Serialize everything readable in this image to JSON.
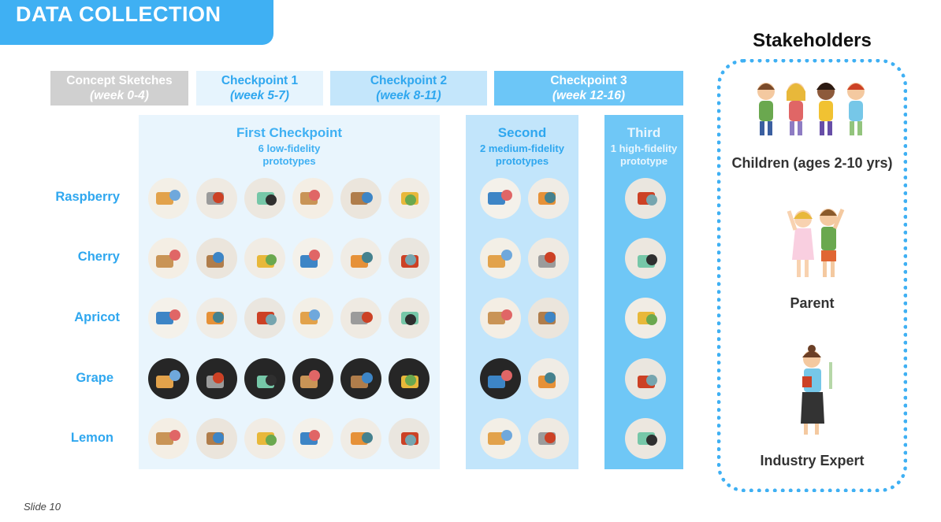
{
  "title": "DATA COLLECTION",
  "phases": [
    {
      "name": "Concept Sketches",
      "weeks": "(week 0-4)"
    },
    {
      "name": "Checkpoint 1",
      "weeks": "(week 5-7)"
    },
    {
      "name": "Checkpoint 2",
      "weeks": "(week 8-11)"
    },
    {
      "name": "Checkpoint 3",
      "weeks": "(week 12-16)"
    }
  ],
  "columns": [
    {
      "title": "First Checkpoint",
      "subtitle1": "6 low-fidelity",
      "subtitle2": "prototypes"
    },
    {
      "title": "Second",
      "subtitle1": "2 medium-fidelity",
      "subtitle2": "prototypes"
    },
    {
      "title": "Third",
      "subtitle1": "1 high-fidelity",
      "subtitle2": "prototype"
    }
  ],
  "rows": [
    "Raspberry",
    "Cherry",
    "Apricot",
    "Grape",
    "Lemon"
  ],
  "stakeholders": {
    "title": "Stakeholders",
    "items": [
      "Children (ages 2-10 yrs)",
      "Parent",
      "Industry Expert"
    ]
  },
  "slide_number": "Slide 10",
  "colors": {
    "accent": "#3fb0f3",
    "phase_gray": "#d0d0d0",
    "phase_cp1": "#e6f4fd",
    "phase_cp2": "#c4e6fb",
    "phase_cp3": "#6cc6f7",
    "col_first": "#e9f5fd",
    "col_second": "#c2e5fb",
    "col_third": "#6fc7f6"
  }
}
